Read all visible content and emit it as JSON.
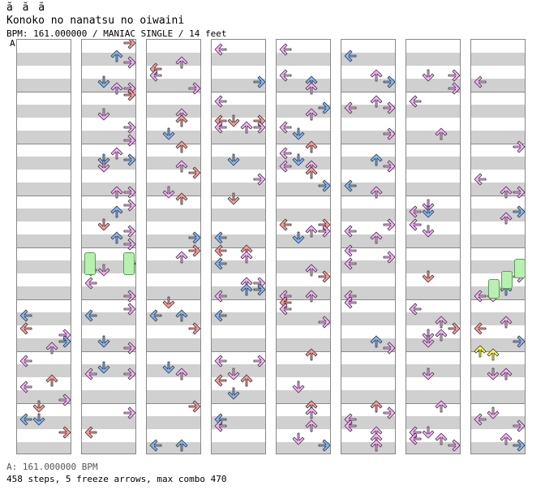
{
  "header": {
    "glyphs": "ă ă ă",
    "song_title": "Konoko no nanatsu no oiwaini",
    "meta": "BPM: 161.000000 / MANIAC SINGLE / 14 feet"
  },
  "section_marker": "A",
  "footer": {
    "bpm_line": "A: 161.000000 BPM",
    "stats": "458 steps, 5 freeze arrows, max combo 470"
  },
  "colors": {
    "quarter": "#ff9a9a",
    "eighth": "#7fb8ff",
    "sixteenth": "#ffb0ff",
    "freeze": "#b8f0b0",
    "shock": "#ffff40"
  },
  "chart_data": {
    "type": "step-chart",
    "difficulty": "MANIAC SINGLE",
    "feet": 14,
    "bpm": 161,
    "columns": 8,
    "lanes": [
      "left",
      "down",
      "up",
      "right"
    ],
    "steps": 458,
    "freeze_arrows": 5,
    "max_combo": 470
  }
}
